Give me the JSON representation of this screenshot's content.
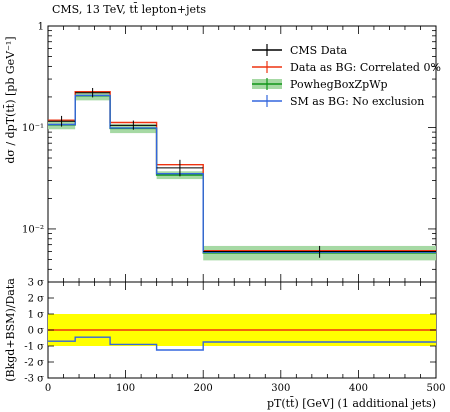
{
  "chart_data": [
    {
      "type": "line",
      "panel": "main",
      "title": "CMS, 13 TeV, tt̄ lepton+jets",
      "ylabel": "dσ / dpT(tt̄) [pb GeV⁻¹]",
      "yscale": "log",
      "ylim": [
        0.003,
        1
      ],
      "xlim": [
        0,
        500
      ],
      "y_tick_labels": [
        "1",
        "10⁻¹",
        "10⁻²"
      ],
      "bins": [
        [
          0,
          35
        ],
        [
          35,
          80
        ],
        [
          80,
          140
        ],
        [
          140,
          200
        ],
        [
          200,
          500
        ]
      ],
      "series": [
        {
          "name": "CMS Data",
          "color": "#000000",
          "style": "points with error bars",
          "x": [
            17.5,
            57.5,
            110,
            170,
            350
          ],
          "y": [
            0.115,
            0.22,
            0.105,
            0.04,
            0.006
          ],
          "y_err_down": [
            0.013,
            0.022,
            0.01,
            0.007,
            0.0008
          ],
          "y_err_up": [
            0.015,
            0.025,
            0.012,
            0.008,
            0.0008
          ]
        },
        {
          "name": "Data as BG: Correlated 0%",
          "color": "#ee3311",
          "style": "histogram",
          "values": [
            0.118,
            0.225,
            0.112,
            0.043,
            0.0061
          ]
        },
        {
          "name": "PowhegBoxZpWp",
          "color": "#109618",
          "band_color": "#a6d9a4",
          "style": "histogram with band",
          "values": [
            0.106,
            0.205,
            0.098,
            0.034,
            0.0058
          ],
          "band_low": [
            0.096,
            0.185,
            0.088,
            0.031,
            0.0049
          ],
          "band_high": [
            0.116,
            0.225,
            0.108,
            0.037,
            0.0068
          ]
        },
        {
          "name": "SM as BG: No exclusion",
          "color": "#3366dd",
          "style": "histogram",
          "values": [
            0.107,
            0.207,
            0.099,
            0.035,
            0.0059
          ]
        }
      ]
    },
    {
      "type": "line",
      "panel": "ratio",
      "ylabel": "(Bkgd+BSM)/Data",
      "xlabel": "pT(tt̄) [GeV] (1 additional jets)",
      "xlim": [
        0,
        500
      ],
      "ylim": [
        -3,
        3
      ],
      "x_ticks": [
        0,
        100,
        200,
        300,
        400,
        500
      ],
      "y_tick_labels": [
        "3 σ",
        "2 σ",
        "1 σ",
        "0 σ",
        "-1 σ",
        "-2 σ",
        "-3 σ"
      ],
      "band": {
        "name": "±1σ",
        "range": [
          -1,
          1
        ],
        "color": "#ffff00"
      },
      "series": [
        {
          "name": "Data as BG: Correlated 0%",
          "color": "#ee3311",
          "values": [
            0,
            0,
            0,
            0,
            0
          ]
        },
        {
          "name": "SM as BG: No exclusion",
          "color": "#3366dd",
          "values": [
            -0.7,
            -0.45,
            -0.9,
            -1.25,
            -0.75
          ]
        }
      ]
    }
  ]
}
